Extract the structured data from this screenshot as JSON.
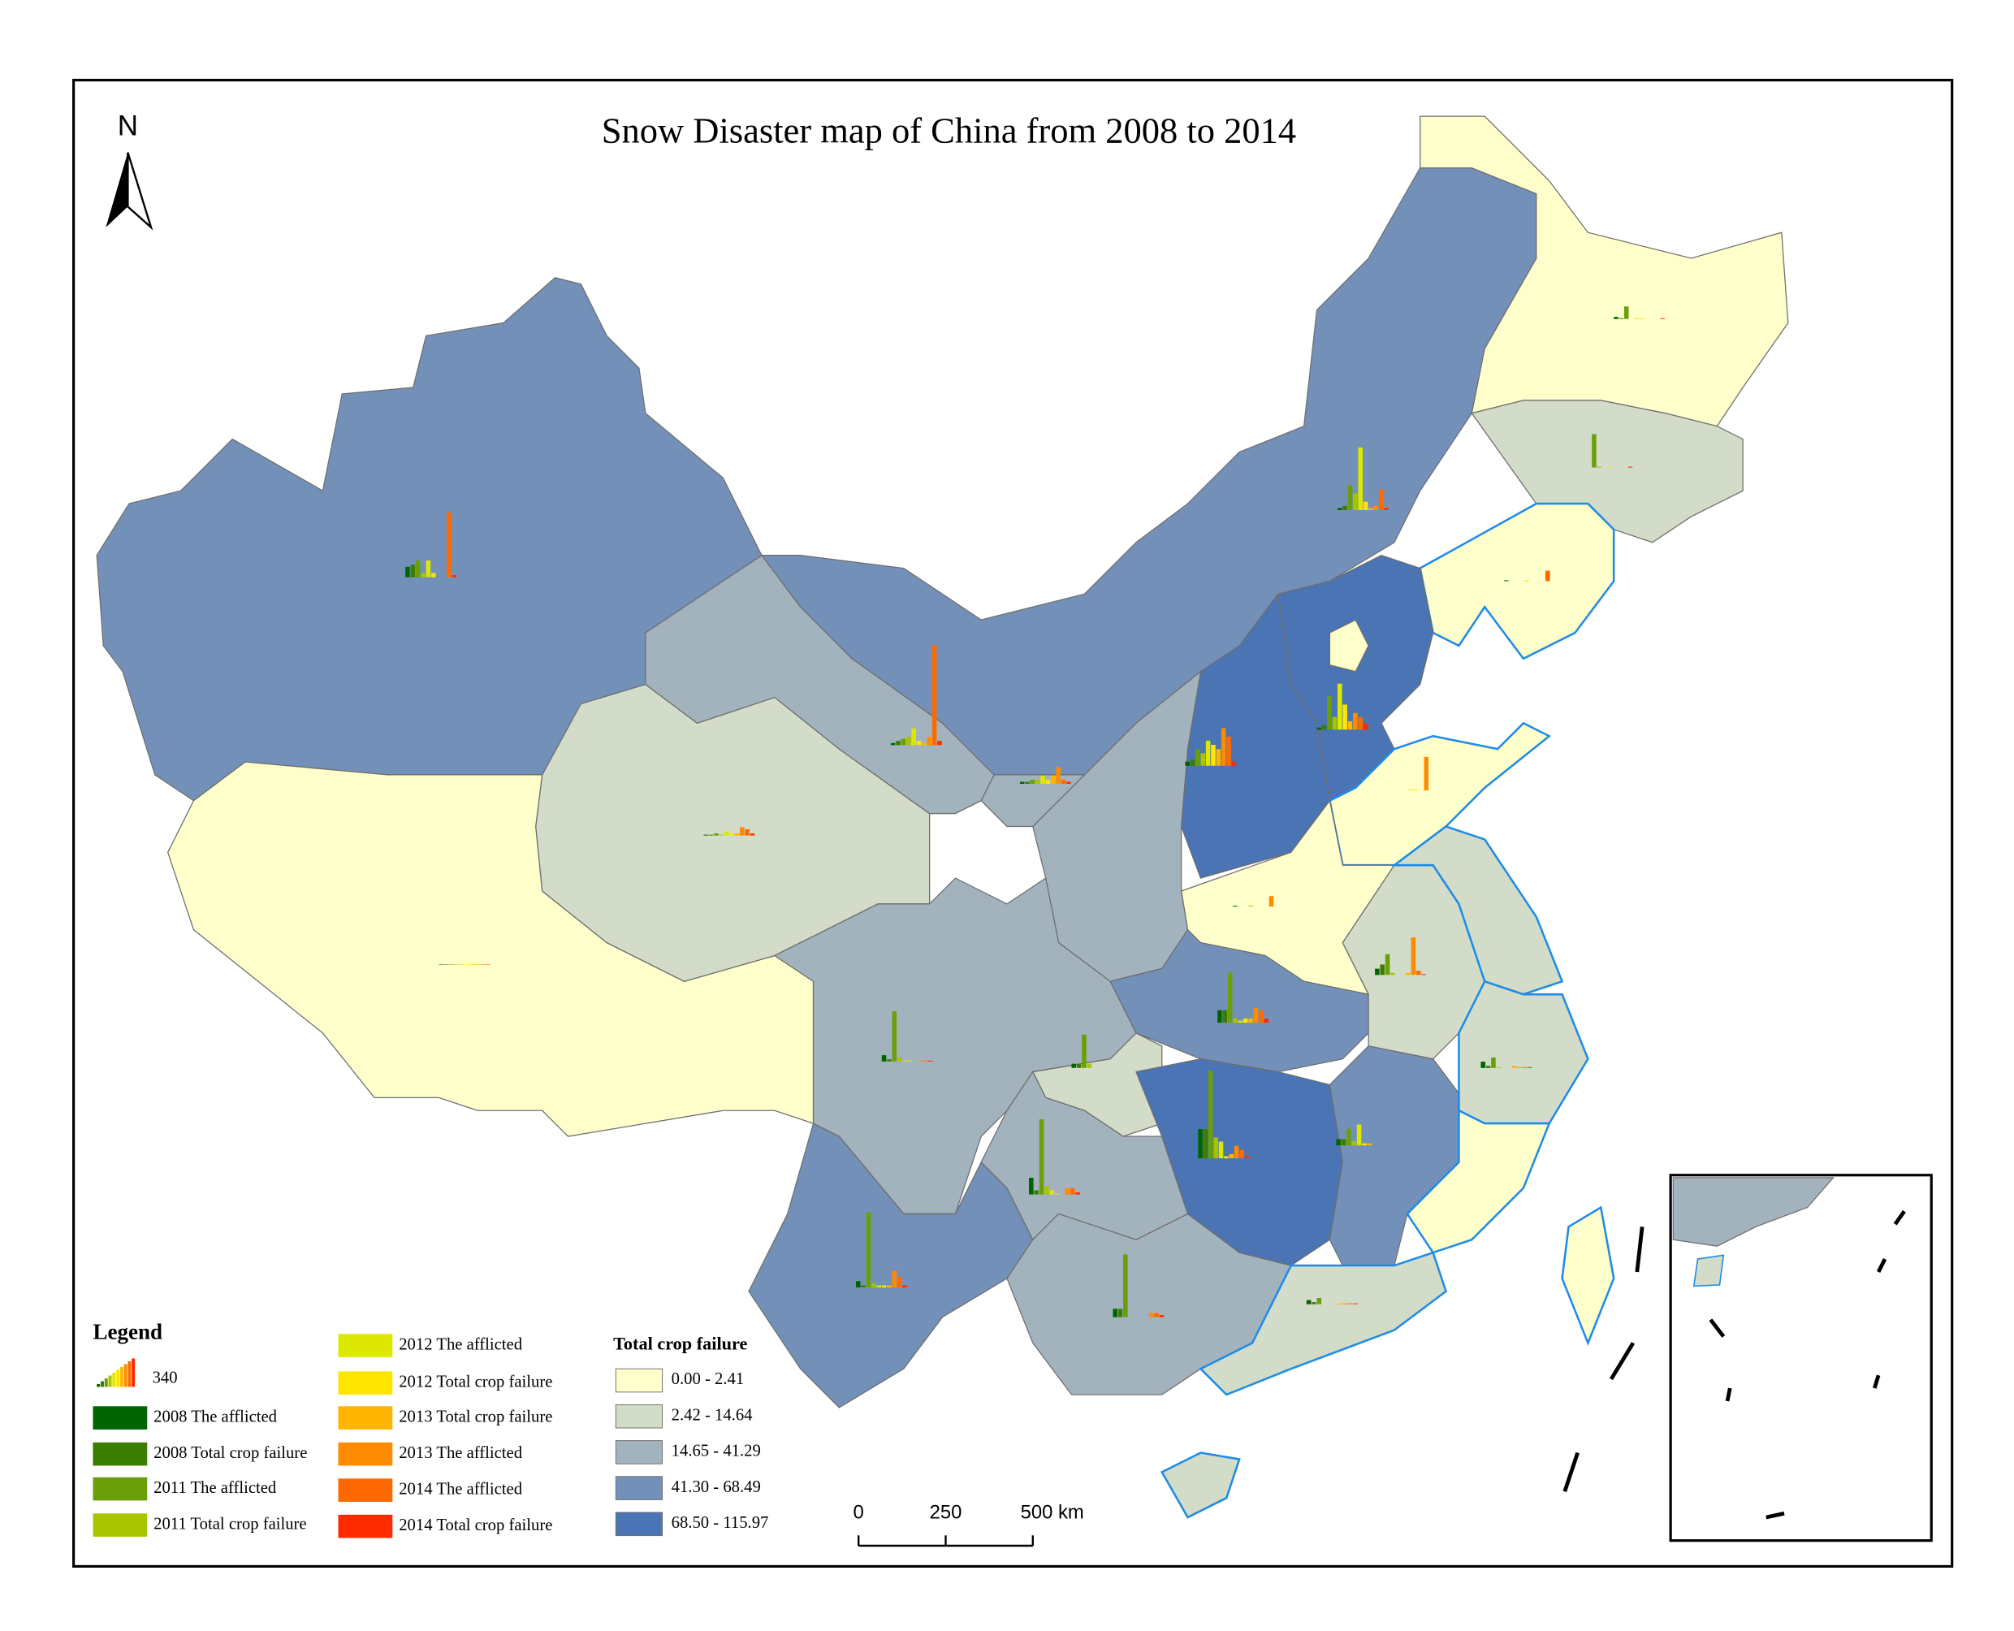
{
  "title": "Snow Disaster map of China from 2008 to 2014",
  "north": "N",
  "legend": {
    "title": "Legend",
    "symbol_max": 340,
    "series": [
      {
        "name": "2008 The afflicted",
        "color": "#006400"
      },
      {
        "name": "2008 Total crop failure",
        "color": "#3a7d00"
      },
      {
        "name": "2011 The afflicted",
        "color": "#6a9f0a"
      },
      {
        "name": "2011 Total crop failure",
        "color": "#a8c400"
      },
      {
        "name": "2012 The afflicted",
        "color": "#dde800"
      },
      {
        "name": "2012 Total crop failure",
        "color": "#ffe600"
      },
      {
        "name": "2013 Total crop failure",
        "color": "#ffb400"
      },
      {
        "name": "2013 The afflicted",
        "color": "#ff8c00"
      },
      {
        "name": "2014 The afflicted",
        "color": "#ff6a00"
      },
      {
        "name": "2014 Total crop failure",
        "color": "#ff2a00"
      }
    ]
  },
  "classes": {
    "title": "Total crop failure",
    "items": [
      {
        "label": "0.00 - 2.41",
        "color": "#ffffcc"
      },
      {
        "label": "2.42 - 14.64",
        "color": "#d2dcc8"
      },
      {
        "label": "14.65 - 41.29",
        "color": "#a3b3be"
      },
      {
        "label": "41.30 - 68.49",
        "color": "#7391b8"
      },
      {
        "label": "68.50 - 115.97",
        "color": "#4a74b4"
      }
    ]
  },
  "regions": [
    3,
    0,
    1,
    2,
    3,
    0,
    1,
    0,
    4,
    4,
    0,
    0,
    2,
    2,
    2,
    1,
    3,
    2,
    2,
    3,
    4,
    3,
    1,
    1,
    1,
    0,
    1,
    1,
    0,
    0
  ],
  "charts": [
    [
      25,
      30,
      40,
      10,
      40,
      10,
      0,
      0,
      155,
      5
    ],
    [
      5,
      10,
      60,
      40,
      150,
      20,
      5,
      10,
      50,
      5
    ],
    [
      5,
      10,
      15,
      20,
      40,
      10,
      5,
      20,
      240,
      10
    ],
    [
      5,
      5,
      10,
      10,
      20,
      10,
      20,
      40,
      10,
      5
    ],
    [
      2,
      2,
      5,
      2,
      10,
      5,
      5,
      20,
      15,
      5
    ],
    [
      1,
      1,
      1,
      1,
      1,
      1,
      1,
      1,
      1,
      1
    ],
    [
      5,
      10,
      80,
      30,
      110,
      60,
      20,
      40,
      30,
      15
    ],
    [
      10,
      15,
      40,
      30,
      60,
      50,
      40,
      90,
      70,
      10
    ],
    [
      5,
      2,
      30,
      0,
      2,
      2,
      0,
      0,
      0,
      2
    ],
    [
      0,
      0,
      80,
      2,
      0,
      2,
      0,
      0,
      0,
      2
    ],
    [
      2,
      0,
      0,
      0,
      2,
      0,
      0,
      0,
      25,
      0
    ],
    [
      0,
      0,
      0,
      0,
      2,
      2,
      0,
      80,
      0,
      0
    ],
    [
      2,
      0,
      0,
      2,
      0,
      0,
      0,
      25,
      0,
      0
    ],
    [
      15,
      25,
      50,
      5,
      0,
      0,
      5,
      90,
      10,
      2
    ],
    [
      30,
      30,
      120,
      10,
      5,
      10,
      10,
      35,
      30,
      10
    ],
    [
      70,
      70,
      210,
      50,
      40,
      5,
      10,
      30,
      20,
      5
    ],
    [
      15,
      15,
      40,
      10,
      50,
      5,
      5,
      0,
      0,
      0
    ],
    [
      15,
      5,
      25,
      2,
      0,
      0,
      5,
      2,
      2,
      2
    ],
    [
      15,
      5,
      120,
      10,
      2,
      2,
      0,
      2,
      2,
      2
    ],
    [
      10,
      10,
      80,
      10,
      0,
      0,
      0,
      0,
      0,
      0
    ],
    [
      40,
      10,
      180,
      20,
      10,
      2,
      0,
      15,
      15,
      5
    ],
    [
      15,
      5,
      180,
      10,
      5,
      5,
      5,
      40,
      25,
      5
    ],
    [
      20,
      20,
      150,
      0,
      0,
      0,
      0,
      10,
      10,
      5
    ],
    [
      10,
      5,
      15,
      0,
      0,
      0,
      2,
      2,
      2,
      2
    ]
  ],
  "scale_bar": {
    "ticks": [
      {
        "value": 0,
        "label": "0"
      },
      {
        "value": 250,
        "label": "250"
      },
      {
        "value": 500,
        "label": "500 km"
      }
    ]
  }
}
